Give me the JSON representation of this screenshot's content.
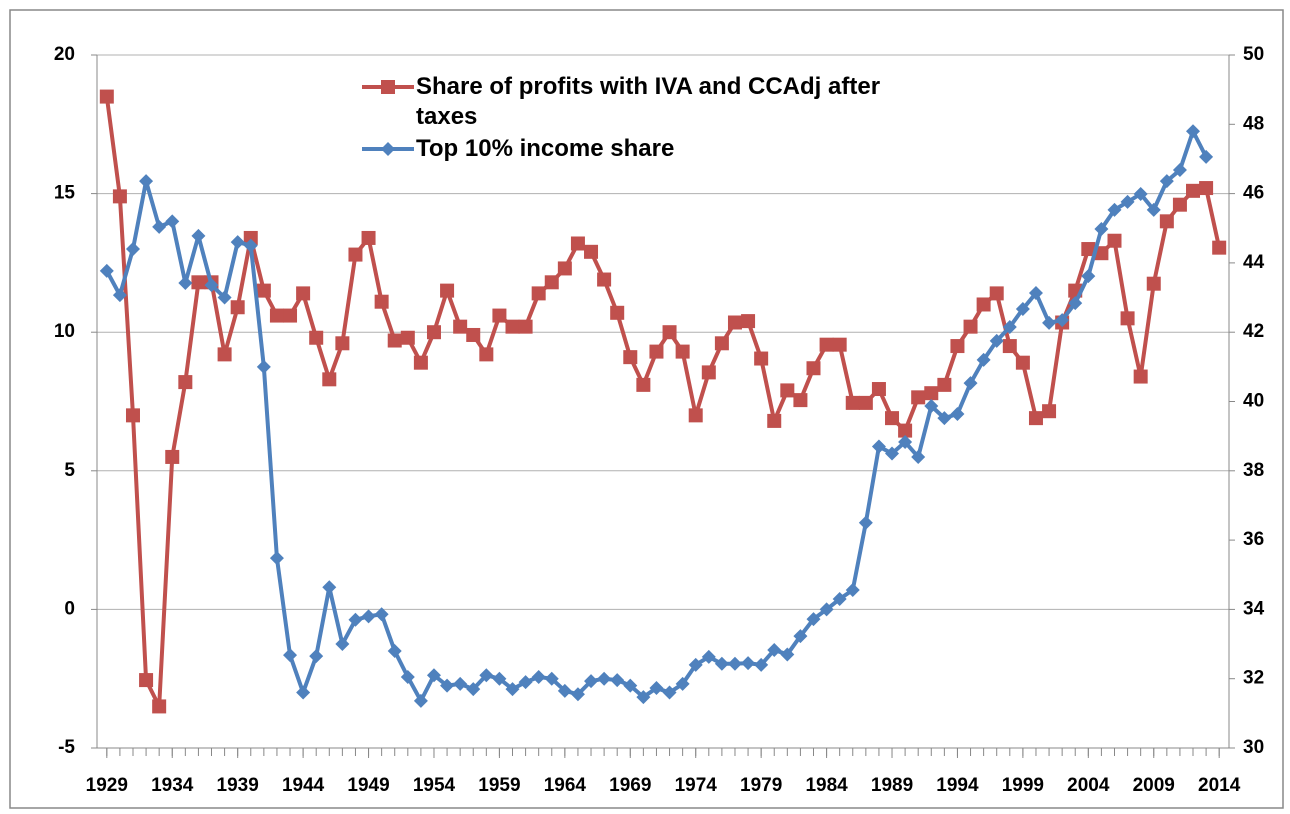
{
  "chart_data": {
    "type": "line",
    "x": [
      1929,
      1930,
      1931,
      1932,
      1933,
      1934,
      1935,
      1936,
      1937,
      1938,
      1939,
      1940,
      1941,
      1942,
      1943,
      1944,
      1945,
      1946,
      1947,
      1948,
      1949,
      1950,
      1951,
      1952,
      1953,
      1954,
      1955,
      1956,
      1957,
      1958,
      1959,
      1960,
      1961,
      1962,
      1963,
      1964,
      1965,
      1966,
      1967,
      1968,
      1969,
      1970,
      1971,
      1972,
      1973,
      1974,
      1975,
      1976,
      1977,
      1978,
      1979,
      1980,
      1981,
      1982,
      1983,
      1984,
      1985,
      1986,
      1987,
      1988,
      1989,
      1990,
      1991,
      1992,
      1993,
      1994,
      1995,
      1996,
      1997,
      1998,
      1999,
      2000,
      2001,
      2002,
      2003,
      2004,
      2005,
      2006,
      2007,
      2008,
      2009,
      2010,
      2011,
      2012,
      2013,
      2014
    ],
    "series": [
      {
        "name": "Share of profits with IVA and CCAdj after taxes",
        "color": "#c0504d",
        "marker": "square",
        "values": [
          18.5,
          14.9,
          7.0,
          -2.55,
          -3.5,
          5.5,
          8.2,
          11.8,
          11.8,
          9.2,
          10.9,
          13.4,
          11.5,
          10.6,
          10.6,
          11.4,
          9.8,
          8.3,
          9.6,
          12.8,
          13.4,
          11.1,
          9.7,
          9.8,
          8.9,
          10.0,
          11.5,
          10.2,
          9.9,
          9.2,
          10.6,
          10.2,
          10.2,
          11.4,
          11.8,
          12.3,
          13.2,
          12.9,
          11.9,
          10.7,
          9.1,
          8.1,
          9.3,
          10.0,
          9.3,
          7.0,
          8.55,
          9.6,
          10.35,
          10.4,
          9.05,
          6.8,
          7.9,
          7.55,
          8.7,
          9.55,
          9.55,
          7.45,
          7.45,
          7.95,
          6.9,
          6.45,
          7.65,
          7.8,
          8.1,
          9.5,
          10.2,
          11.0,
          11.4,
          9.5,
          8.9,
          6.9,
          7.15,
          10.35,
          11.5,
          13.0,
          12.85,
          13.3,
          10.5,
          8.4,
          11.75,
          14.0,
          14.6,
          15.1,
          15.2,
          13.05
        ]
      },
      {
        "name": "Top 10% income share",
        "color": "#4f81bd",
        "marker": "diamond",
        "axis": "y2",
        "values": [
          43.77,
          43.07,
          44.4,
          46.36,
          45.04,
          45.2,
          43.42,
          44.78,
          43.36,
          43.0,
          44.6,
          44.5,
          41.0,
          35.48,
          32.68,
          31.6,
          32.65,
          34.64,
          33.0,
          33.7,
          33.8,
          33.86,
          32.8,
          32.05,
          31.36,
          32.1,
          31.8,
          31.85,
          31.7,
          32.1,
          32.0,
          31.7,
          31.9,
          32.05,
          32.0,
          31.65,
          31.55,
          31.93,
          32.0,
          31.96,
          31.8,
          31.47,
          31.73,
          31.6,
          31.85,
          32.4,
          32.63,
          32.43,
          32.43,
          32.45,
          32.4,
          32.83,
          32.7,
          33.23,
          33.72,
          34.0,
          34.3,
          34.56,
          36.5,
          38.7,
          38.5,
          38.83,
          38.4,
          39.87,
          39.52,
          39.64,
          40.53,
          41.2,
          41.75,
          42.15,
          42.67,
          43.13,
          42.27,
          42.35,
          42.84,
          43.62,
          44.98,
          45.53,
          45.76,
          45.99,
          45.53,
          46.36,
          46.68,
          47.8,
          47.06,
          null
        ]
      }
    ],
    "xlim": [
      1928.25,
      2014.75
    ],
    "xticks": [
      1929,
      1934,
      1939,
      1944,
      1949,
      1954,
      1959,
      1964,
      1969,
      1974,
      1979,
      1984,
      1989,
      1994,
      1999,
      2004,
      2009,
      2014
    ],
    "ylim": [
      -5,
      20
    ],
    "yticks": [
      -5,
      0,
      5,
      10,
      15,
      20
    ],
    "y2lim": [
      30,
      50
    ],
    "y2ticks": [
      30,
      32,
      34,
      36,
      38,
      40,
      42,
      44,
      46,
      48,
      50
    ],
    "grid": true,
    "legend": "top"
  }
}
